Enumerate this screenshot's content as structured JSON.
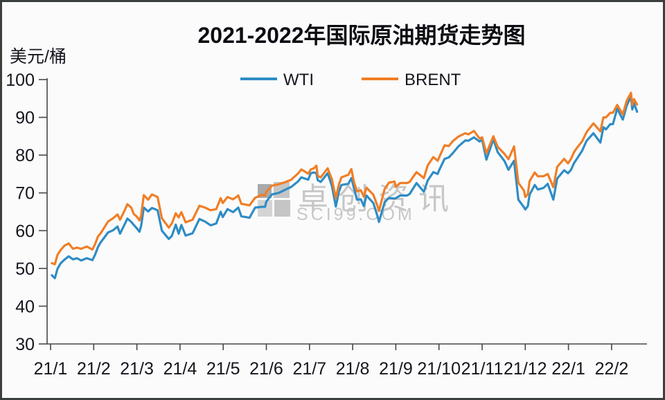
{
  "frame": {
    "border_color": "#3a3f3c",
    "background": "#fbfbfb"
  },
  "chart_data": {
    "type": "line",
    "title": "2021-2022年国际原油期货走势图",
    "unit_label": "美元/桶",
    "ylim": [
      30,
      100
    ],
    "yticks": [
      100,
      90,
      80,
      70,
      60,
      50,
      40,
      30
    ],
    "xtick_labels": [
      "21/1",
      "21/2",
      "21/3",
      "21/4",
      "21/5",
      "21/6",
      "21/7",
      "21/8",
      "21/9",
      "21/10",
      "21/11",
      "21/12",
      "22/1",
      "22/2"
    ],
    "x_axis_note": "x values are months after Jan 2021 tick; data runs Jan 2021 to late Feb 2022",
    "grid": false,
    "legend_position": "top-center",
    "axis_color": "#474747",
    "text_color": "#15151e",
    "x": [
      0.03,
      0.1,
      0.16,
      0.23,
      0.32,
      0.42,
      0.52,
      0.61,
      0.71,
      0.84,
      0.97,
      1.03,
      1.1,
      1.16,
      1.26,
      1.33,
      1.45,
      1.55,
      1.61,
      1.71,
      1.78,
      1.87,
      1.93,
      2.0,
      2.06,
      2.1,
      2.16,
      2.26,
      2.35,
      2.48,
      2.58,
      2.74,
      2.81,
      2.9,
      2.97,
      3.03,
      3.13,
      3.29,
      3.45,
      3.58,
      3.71,
      3.84,
      3.94,
      3.99,
      4.1,
      4.23,
      4.35,
      4.42,
      4.61,
      4.74,
      4.9,
      4.97,
      5.0,
      5.13,
      5.29,
      5.45,
      5.58,
      5.74,
      5.81,
      5.97,
      6.03,
      6.1,
      6.16,
      6.19,
      6.26,
      6.42,
      6.52,
      6.61,
      6.68,
      6.74,
      6.9,
      6.97,
      7.03,
      7.1,
      7.19,
      7.26,
      7.32,
      7.48,
      7.58,
      7.61,
      7.74,
      7.84,
      7.97,
      8.0,
      8.1,
      8.26,
      8.32,
      8.48,
      8.65,
      8.74,
      8.87,
      8.97,
      9.0,
      9.13,
      9.23,
      9.32,
      9.45,
      9.61,
      9.68,
      9.81,
      9.94,
      10.0,
      10.1,
      10.26,
      10.36,
      10.52,
      10.61,
      10.74,
      10.84,
      10.97,
      11.0,
      11.06,
      11.1,
      11.22,
      11.29,
      11.42,
      11.52,
      11.65,
      11.74,
      11.9,
      11.99,
      12.06,
      12.13,
      12.19,
      12.32,
      12.42,
      12.58,
      12.74,
      12.81,
      12.87,
      12.97,
      13.03,
      13.13,
      13.26,
      13.35,
      13.45,
      13.48,
      13.52,
      13.59
    ],
    "series": [
      {
        "name": "WTI",
        "color": "#2e8cc5",
        "values": [
          48.2,
          47.4,
          49.9,
          51.3,
          52.3,
          53.2,
          52.4,
          52.7,
          52.1,
          52.7,
          52.2,
          53.6,
          55.7,
          56.9,
          58.4,
          59.5,
          60.1,
          61.1,
          59.2,
          61.5,
          63.2,
          62.3,
          61.5,
          60.6,
          59.7,
          61.3,
          66.1,
          65.1,
          66.0,
          65.4,
          60.0,
          57.8,
          58.6,
          61.6,
          59.2,
          61.5,
          58.7,
          59.3,
          63.1,
          62.4,
          61.4,
          61.9,
          65.0,
          63.6,
          65.7,
          64.9,
          66.1,
          63.8,
          63.4,
          66.1,
          66.3,
          66.3,
          67.7,
          69.6,
          70.0,
          70.9,
          71.6,
          73.1,
          74.1,
          73.5,
          75.2,
          75.4,
          75.2,
          73.4,
          72.9,
          75.2,
          71.8,
          66.4,
          70.3,
          72.1,
          72.4,
          73.9,
          71.3,
          68.2,
          68.3,
          66.5,
          69.3,
          67.3,
          63.7,
          62.3,
          67.5,
          68.7,
          68.5,
          68.6,
          69.3,
          69.3,
          69.7,
          72.6,
          70.3,
          73.3,
          75.5,
          75.0,
          75.9,
          79.0,
          79.4,
          80.5,
          82.3,
          83.9,
          83.8,
          84.7,
          83.6,
          84.1,
          78.8,
          84.2,
          80.8,
          78.4,
          76.1,
          78.5,
          68.2,
          66.2,
          65.6,
          66.5,
          69.5,
          72.1,
          70.9,
          71.3,
          72.4,
          68.2,
          73.8,
          76.0,
          75.2,
          76.1,
          77.9,
          78.9,
          81.2,
          83.8,
          85.8,
          83.3,
          87.4,
          86.8,
          88.2,
          88.2,
          92.3,
          89.4,
          93.1,
          95.5,
          92.1,
          93.7,
          91.5
        ]
      },
      {
        "name": "BRENT",
        "color": "#f07e26",
        "values": [
          51.4,
          51.1,
          53.6,
          54.8,
          56.0,
          56.6,
          55.2,
          55.5,
          55.2,
          55.8,
          55.0,
          56.4,
          58.5,
          59.3,
          61.1,
          62.4,
          63.3,
          64.3,
          62.9,
          65.2,
          67.0,
          66.1,
          64.4,
          63.7,
          62.7,
          64.1,
          69.4,
          68.2,
          69.6,
          68.9,
          63.3,
          60.8,
          61.9,
          64.6,
          63.5,
          64.9,
          62.2,
          62.9,
          66.6,
          66.1,
          65.4,
          65.7,
          68.6,
          67.3,
          68.9,
          68.3,
          69.3,
          67.1,
          66.7,
          68.7,
          69.5,
          69.3,
          70.3,
          71.9,
          72.3,
          72.9,
          73.5,
          75.2,
          76.2,
          75.1,
          76.2,
          76.5,
          77.2,
          74.5,
          74.1,
          76.5,
          73.6,
          68.6,
          72.2,
          74.1,
          74.8,
          76.3,
          72.9,
          70.4,
          70.7,
          69.0,
          71.4,
          69.5,
          66.4,
          65.2,
          71.0,
          72.7,
          73.0,
          71.6,
          72.6,
          72.6,
          72.9,
          75.5,
          73.9,
          77.3,
          79.5,
          78.5,
          79.3,
          82.6,
          82.4,
          83.7,
          84.9,
          85.8,
          85.5,
          86.4,
          84.4,
          84.7,
          80.5,
          85.0,
          82.2,
          80.3,
          78.9,
          82.3,
          72.7,
          70.6,
          68.9,
          69.7,
          73.1,
          75.4,
          74.4,
          74.4,
          75.0,
          71.5,
          76.9,
          79.0,
          77.8,
          79.0,
          80.8,
          81.8,
          83.7,
          86.1,
          88.4,
          86.3,
          90.0,
          90.0,
          91.2,
          91.2,
          93.3,
          90.8,
          94.4,
          96.5,
          93.3,
          94.8,
          93.4
        ]
      }
    ],
    "watermark": {
      "line1": "卓创资讯",
      "line2": "SCI99.COM",
      "color": "#c7c7c7"
    }
  }
}
